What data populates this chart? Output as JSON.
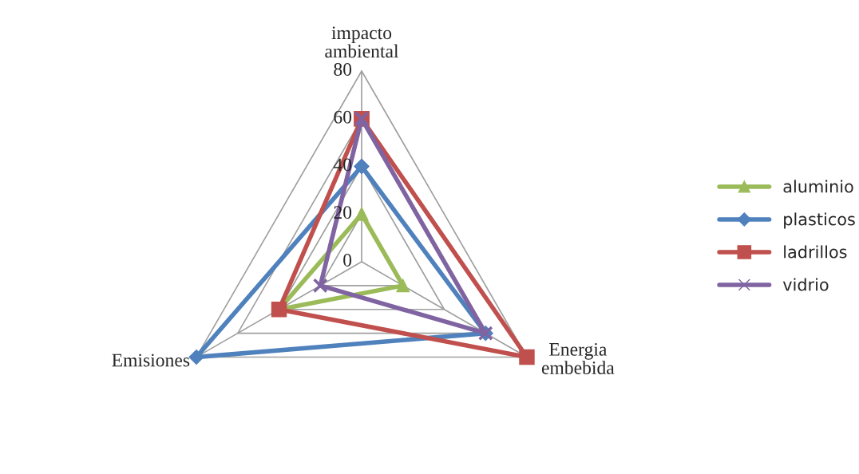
{
  "chart_data": {
    "type": "radar",
    "categories": [
      "impacto ambiental",
      "Energia embebida",
      "Emisiones"
    ],
    "series": [
      {
        "name": "aluminio",
        "color": "#9bbb59",
        "marker": "triangle",
        "values": [
          20,
          20,
          40
        ]
      },
      {
        "name": "plasticos",
        "color": "#4f81bd",
        "marker": "diamond",
        "values": [
          40,
          60,
          80
        ]
      },
      {
        "name": "ladrillos",
        "color": "#c0504d",
        "marker": "square",
        "values": [
          60,
          80,
          40
        ]
      },
      {
        "name": "vidrio",
        "color": "#8064a2",
        "marker": "cross",
        "values": [
          60,
          60,
          20
        ]
      }
    ],
    "ylim": [
      0,
      80
    ],
    "yticks": [
      0,
      20,
      40,
      60,
      80
    ],
    "grid": true,
    "legend": "right"
  }
}
